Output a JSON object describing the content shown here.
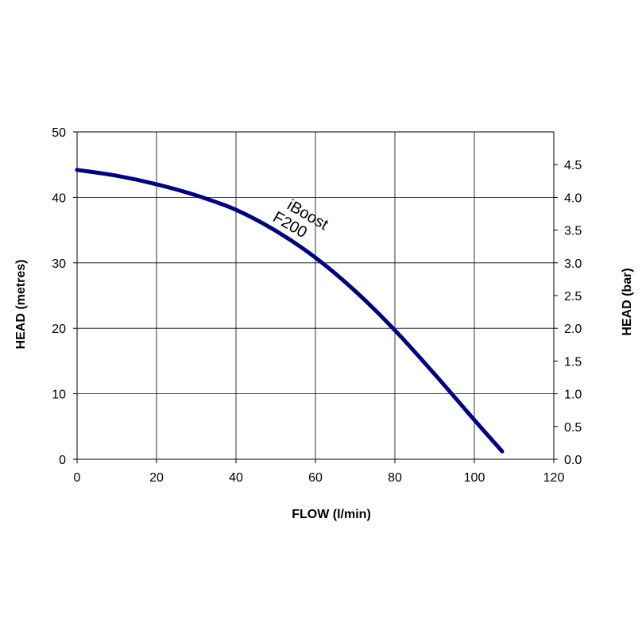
{
  "chart_data": {
    "type": "line",
    "xlabel": "FLOW (l/min)",
    "ylabel": "HEAD (metres)",
    "y2label": "HEAD (bar)",
    "xlim": [
      0,
      120
    ],
    "ylim": [
      0,
      50
    ],
    "y2lim": [
      0,
      5
    ],
    "x_ticks": [
      "0",
      "20",
      "40",
      "60",
      "80",
      "100",
      "120"
    ],
    "y_ticks": [
      "0",
      "10",
      "20",
      "30",
      "40",
      "50"
    ],
    "y2_ticks": [
      "0.0",
      "0.5",
      "1.0",
      "1.5",
      "2.0",
      "2.5",
      "3.0",
      "3.5",
      "4.0",
      "4.5"
    ],
    "grid": true,
    "line_color": "#000080",
    "annotation": [
      "iBoost",
      "F200"
    ],
    "series": [
      {
        "x": [
          0,
          10,
          20,
          30,
          40,
          50,
          60,
          70,
          80,
          90,
          100,
          107
        ],
        "values": [
          44.2,
          43.3,
          42.0,
          40.3,
          38.1,
          34.9,
          30.8,
          25.7,
          19.7,
          13.0,
          6.0,
          1.2
        ]
      }
    ]
  }
}
